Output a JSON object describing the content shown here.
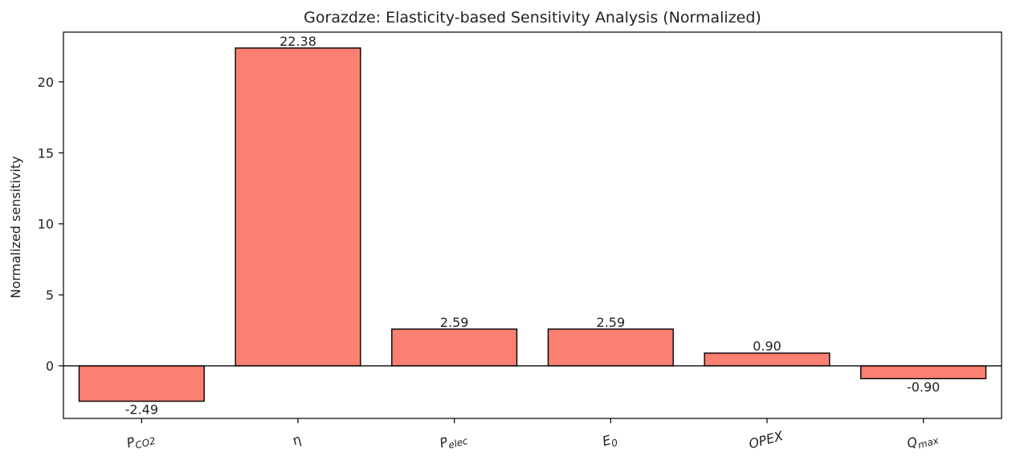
{
  "chart_data": {
    "type": "bar",
    "title": "Gorazdze: Elasticity-based Sensitivity Analysis (Normalized)",
    "xlabel": "",
    "ylabel": "Normalized sensitivity",
    "categories": [
      {
        "base": "P",
        "sub": "CO2",
        "italic": true
      },
      {
        "base": "η",
        "sub": "",
        "italic": false
      },
      {
        "base": "P",
        "sub": "elec",
        "italic": true
      },
      {
        "base": "E",
        "sub": "0",
        "italic": true
      },
      {
        "base": "OPEX",
        "sub": "",
        "italic": true
      },
      {
        "base": "Q",
        "sub": "max",
        "italic": true
      }
    ],
    "values": [
      -2.49,
      22.38,
      2.59,
      2.59,
      0.9,
      -0.9
    ],
    "value_labels": [
      "-2.49",
      "22.38",
      "2.59",
      "2.59",
      "0.90",
      "-0.90"
    ],
    "ylim": [
      -3.7,
      23.5
    ],
    "yticks": [
      0,
      5,
      10,
      15,
      20
    ],
    "ytick_labels": [
      "0",
      "5",
      "10",
      "15",
      "20"
    ],
    "grid": false,
    "zero_line": true,
    "bar_color": "#fa8072",
    "bar_edge_color": "#000000"
  }
}
